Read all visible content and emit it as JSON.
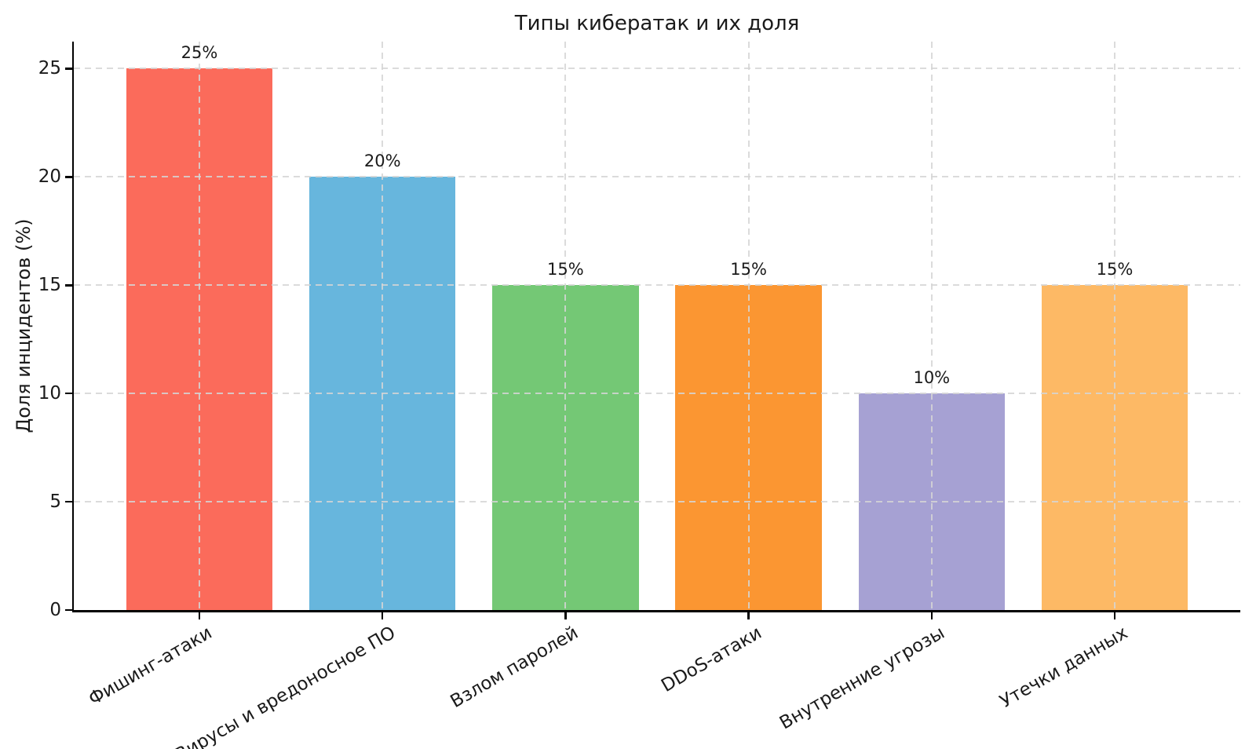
{
  "chart_data": {
    "type": "bar",
    "title": "Типы кибератак и их доля",
    "ylabel": "Доля инцидентов (%)",
    "xlabel": "",
    "categories": [
      "Фишинг-атаки",
      "Вирусы и вредоносное ПО",
      "Взлом паролей",
      "DDoS-атаки",
      "Внутренние угрозы",
      "Утечки данных"
    ],
    "values": [
      25,
      20,
      15,
      15,
      10,
      15
    ],
    "bar_labels": [
      "25%",
      "20%",
      "15%",
      "15%",
      "10%",
      "15%"
    ],
    "bar_colors": [
      "#FB6B5B",
      "#67B6DD",
      "#74C875",
      "#FB9632",
      "#A6A1D3",
      "#FDB965"
    ],
    "yticks": [
      0,
      5,
      10,
      15,
      20,
      25
    ],
    "ytick_labels": [
      "0",
      "5",
      "10",
      "15",
      "20",
      "25"
    ],
    "ylim": [
      0,
      26.25
    ],
    "bar_width_data_units": 0.8,
    "xtick_rotation_deg": 30,
    "grid": true,
    "grid_line_style": "dashed",
    "legend_position": "none"
  },
  "colors": {
    "background": "#FFFFFF",
    "spine": "#000000",
    "grid": "#D5D5D5",
    "text": "#1A1A1A"
  }
}
